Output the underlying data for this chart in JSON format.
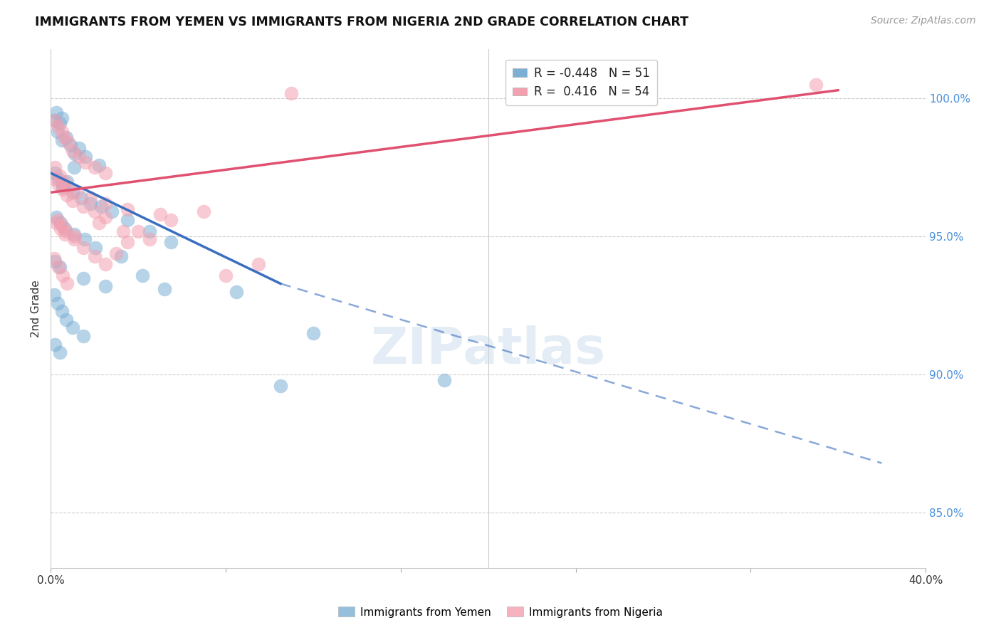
{
  "title": "IMMIGRANTS FROM YEMEN VS IMMIGRANTS FROM NIGERIA 2ND GRADE CORRELATION CHART",
  "source": "Source: ZipAtlas.com",
  "ylabel": "2nd Grade",
  "xlim": [
    0.0,
    40.0
  ],
  "ylim": [
    83.0,
    101.8
  ],
  "y_ticks": [
    85.0,
    90.0,
    95.0,
    100.0
  ],
  "y_tick_labels": [
    "85.0%",
    "90.0%",
    "95.0%",
    "100.0%"
  ],
  "blue_color": "#7bafd4",
  "pink_color": "#f4a0b0",
  "blue_line_color": "#3a6fc0",
  "pink_line_color": "#e05070",
  "watermark": "ZIPatlas",
  "legend_blue_label": "R = -0.448   N = 51",
  "legend_pink_label": "R =  0.416   N = 54",
  "blue_trend_x0": 0.0,
  "blue_trend_y0": 97.3,
  "blue_trend_x1": 10.5,
  "blue_trend_y1": 93.3,
  "blue_dash_x0": 10.5,
  "blue_dash_y0": 93.3,
  "blue_dash_x1": 38.0,
  "blue_dash_y1": 86.8,
  "pink_trend_x0": 0.0,
  "pink_trend_y0": 96.6,
  "pink_trend_x1": 36.0,
  "pink_trend_y1": 100.3,
  "scatter_blue": [
    [
      0.15,
      99.2
    ],
    [
      0.25,
      99.5
    ],
    [
      0.4,
      99.1
    ],
    [
      0.5,
      99.3
    ],
    [
      0.3,
      98.8
    ],
    [
      0.5,
      98.5
    ],
    [
      0.7,
      98.6
    ],
    [
      0.9,
      98.3
    ],
    [
      1.1,
      98.0
    ],
    [
      1.3,
      98.2
    ],
    [
      1.6,
      97.9
    ],
    [
      2.2,
      97.6
    ],
    [
      0.2,
      97.3
    ],
    [
      0.35,
      97.1
    ],
    [
      0.55,
      96.9
    ],
    [
      0.75,
      97.0
    ],
    [
      1.0,
      96.6
    ],
    [
      1.4,
      96.4
    ],
    [
      1.8,
      96.2
    ],
    [
      2.3,
      96.1
    ],
    [
      2.8,
      95.9
    ],
    [
      0.25,
      95.7
    ],
    [
      0.45,
      95.5
    ],
    [
      0.65,
      95.3
    ],
    [
      1.05,
      95.1
    ],
    [
      1.55,
      94.9
    ],
    [
      2.05,
      94.6
    ],
    [
      3.2,
      94.3
    ],
    [
      4.2,
      93.6
    ],
    [
      5.2,
      93.1
    ],
    [
      0.55,
      96.8
    ],
    [
      1.05,
      97.5
    ],
    [
      3.5,
      95.6
    ],
    [
      4.5,
      95.2
    ],
    [
      5.5,
      94.8
    ],
    [
      0.2,
      94.1
    ],
    [
      0.4,
      93.9
    ],
    [
      1.5,
      93.5
    ],
    [
      2.5,
      93.2
    ],
    [
      0.15,
      92.9
    ],
    [
      0.3,
      92.6
    ],
    [
      0.5,
      92.3
    ],
    [
      0.7,
      92.0
    ],
    [
      1.0,
      91.7
    ],
    [
      1.5,
      91.4
    ],
    [
      0.2,
      91.1
    ],
    [
      0.4,
      90.8
    ],
    [
      8.5,
      93.0
    ],
    [
      12.0,
      91.5
    ],
    [
      10.5,
      89.6
    ],
    [
      18.0,
      89.8
    ]
  ],
  "scatter_pink": [
    [
      0.2,
      99.2
    ],
    [
      0.3,
      99.0
    ],
    [
      0.5,
      98.8
    ],
    [
      0.6,
      98.6
    ],
    [
      0.8,
      98.4
    ],
    [
      1.0,
      98.1
    ],
    [
      1.3,
      97.9
    ],
    [
      1.6,
      97.7
    ],
    [
      2.0,
      97.5
    ],
    [
      2.5,
      97.3
    ],
    [
      0.15,
      97.1
    ],
    [
      0.35,
      96.9
    ],
    [
      0.55,
      96.7
    ],
    [
      0.75,
      96.5
    ],
    [
      1.0,
      96.3
    ],
    [
      1.5,
      96.1
    ],
    [
      2.0,
      95.9
    ],
    [
      2.5,
      95.7
    ],
    [
      0.25,
      95.5
    ],
    [
      0.45,
      95.3
    ],
    [
      0.65,
      95.1
    ],
    [
      1.05,
      94.9
    ],
    [
      0.2,
      97.5
    ],
    [
      0.4,
      97.2
    ],
    [
      0.6,
      97.0
    ],
    [
      0.8,
      96.8
    ],
    [
      1.2,
      96.6
    ],
    [
      1.8,
      96.4
    ],
    [
      2.5,
      96.2
    ],
    [
      3.5,
      96.0
    ],
    [
      5.0,
      95.8
    ],
    [
      0.3,
      95.6
    ],
    [
      0.5,
      95.4
    ],
    [
      0.7,
      95.2
    ],
    [
      1.1,
      95.0
    ],
    [
      2.2,
      95.5
    ],
    [
      3.3,
      95.2
    ],
    [
      4.5,
      94.9
    ],
    [
      1.5,
      94.6
    ],
    [
      2.0,
      94.3
    ],
    [
      2.5,
      94.0
    ],
    [
      3.0,
      94.4
    ],
    [
      3.5,
      94.8
    ],
    [
      4.0,
      95.2
    ],
    [
      5.5,
      95.6
    ],
    [
      7.0,
      95.9
    ],
    [
      0.15,
      94.2
    ],
    [
      0.35,
      93.9
    ],
    [
      0.55,
      93.6
    ],
    [
      0.75,
      93.3
    ],
    [
      8.0,
      93.6
    ],
    [
      9.5,
      94.0
    ],
    [
      35.0,
      100.5
    ],
    [
      11.0,
      100.2
    ]
  ]
}
